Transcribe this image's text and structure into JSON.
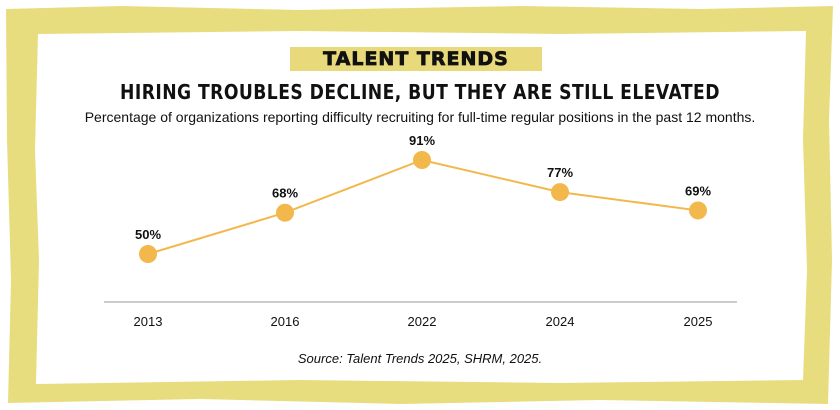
{
  "header": {
    "badge": "TALENT TRENDS",
    "title": "HIRING TROUBLES DECLINE, BUT THEY ARE STILL ELEVATED",
    "subtitle": "Percentage of organizations reporting difficulty recruiting for full-time regular positions in the past 12 months."
  },
  "source": "Source: Talent Trends 2025, SHRM, 2025.",
  "colors": {
    "line": "#f2b84b",
    "frame": "#e8dd7e",
    "badge": "#e8d97a",
    "axis": "#9a9a9a"
  },
  "chart_data": {
    "type": "line",
    "categories": [
      "2013",
      "2016",
      "2022",
      "2024",
      "2025"
    ],
    "values": [
      50,
      68,
      91,
      77,
      69
    ],
    "data_labels": [
      "50%",
      "68%",
      "91%",
      "77%",
      "69%"
    ],
    "ylabel": "",
    "xlabel": "",
    "grid": false,
    "legend": "none"
  }
}
